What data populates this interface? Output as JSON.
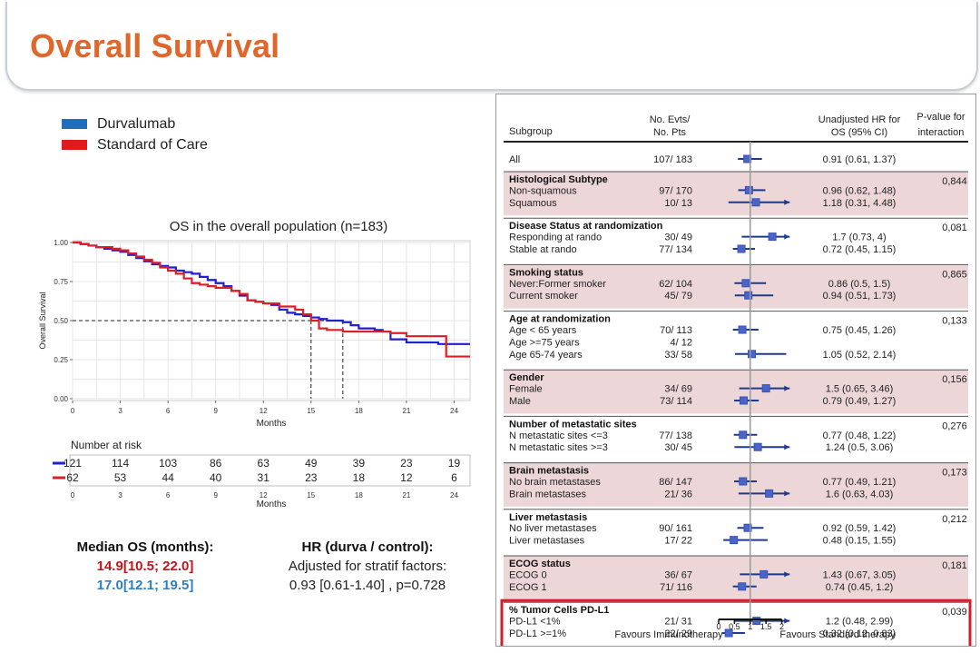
{
  "page": {
    "title": "Overall Survival"
  },
  "km": {
    "legend": [
      {
        "label": "Durvalumab",
        "color": "#1f6fbf"
      },
      {
        "label": "Standard of Care",
        "color": "#e31a1c"
      }
    ],
    "risk_header": "Number at risk",
    "x_label": "Months",
    "y_label": "Overall Survival",
    "colors": {
      "durva": "#1f1fd6",
      "soc": "#dc1f24"
    }
  },
  "median": {
    "title": "Median OS (months):",
    "soc": "14.9[10.5; 22.0]",
    "durva": "17.0[12.1; 19.5]",
    "soc_color": "#c0141b",
    "durva_color": "#2f7fbf"
  },
  "hr": {
    "title": "HR (durva / control):",
    "line1": "Adjusted for stratif factors:",
    "line2": "0.93 [0.61-1.40]   , p=0.728"
  },
  "chart_data": [
    {
      "type": "line",
      "title": "OS in the overall population (n=183)",
      "xlabel": "Months",
      "ylabel": "Overall Survival",
      "xlim": [
        0,
        25
      ],
      "ylim": [
        0,
        1
      ],
      "x_ticks": [
        0,
        3,
        6,
        9,
        12,
        15,
        18,
        21,
        24
      ],
      "y_ticks": [
        "0.00",
        "0.25",
        "0.50",
        "0.75",
        "1.00"
      ],
      "grid": true,
      "series": [
        {
          "name": "Durvalumab",
          "color": "#1f1fd6",
          "points": [
            [
              0,
              1.0
            ],
            [
              0.5,
              0.99
            ],
            [
              1,
              0.98
            ],
            [
              1.5,
              0.97
            ],
            [
              2,
              0.96
            ],
            [
              2.5,
              0.95
            ],
            [
              3,
              0.94
            ],
            [
              3.5,
              0.92
            ],
            [
              4,
              0.9
            ],
            [
              4.5,
              0.88
            ],
            [
              5,
              0.86
            ],
            [
              5.5,
              0.85
            ],
            [
              6,
              0.84
            ],
            [
              6.5,
              0.82
            ],
            [
              7,
              0.81
            ],
            [
              7.5,
              0.8
            ],
            [
              8,
              0.78
            ],
            [
              8.5,
              0.76
            ],
            [
              9,
              0.74
            ],
            [
              9.5,
              0.72
            ],
            [
              10,
              0.69
            ],
            [
              10.5,
              0.66
            ],
            [
              11,
              0.63
            ],
            [
              11.5,
              0.62
            ],
            [
              12,
              0.61
            ],
            [
              12.5,
              0.6
            ],
            [
              13,
              0.57
            ],
            [
              13.5,
              0.55
            ],
            [
              14,
              0.54
            ],
            [
              14.5,
              0.53
            ],
            [
              15,
              0.52
            ],
            [
              15.5,
              0.51
            ],
            [
              16,
              0.5
            ],
            [
              17,
              0.49
            ],
            [
              17.5,
              0.47
            ],
            [
              18,
              0.45
            ],
            [
              19,
              0.44
            ],
            [
              19.5,
              0.43
            ],
            [
              20,
              0.38
            ],
            [
              21,
              0.36
            ],
            [
              22,
              0.36
            ],
            [
              23,
              0.35
            ],
            [
              24,
              0.35
            ],
            [
              25,
              0.35
            ]
          ]
        },
        {
          "name": "Standard of Care",
          "color": "#dc1f24",
          "points": [
            [
              0,
              1.0
            ],
            [
              0.5,
              0.99
            ],
            [
              1,
              0.98
            ],
            [
              1.5,
              0.97
            ],
            [
              2,
              0.97
            ],
            [
              2.5,
              0.96
            ],
            [
              3,
              0.95
            ],
            [
              3.5,
              0.93
            ],
            [
              4,
              0.91
            ],
            [
              4.5,
              0.89
            ],
            [
              5,
              0.87
            ],
            [
              5.5,
              0.84
            ],
            [
              6,
              0.82
            ],
            [
              6.5,
              0.8
            ],
            [
              7,
              0.77
            ],
            [
              7.5,
              0.74
            ],
            [
              8,
              0.73
            ],
            [
              8.5,
              0.72
            ],
            [
              9,
              0.71
            ],
            [
              10,
              0.69
            ],
            [
              10.5,
              0.67
            ],
            [
              11,
              0.63
            ],
            [
              11.5,
              0.62
            ],
            [
              12,
              0.61
            ],
            [
              13,
              0.59
            ],
            [
              14,
              0.57
            ],
            [
              14.5,
              0.54
            ],
            [
              15,
              0.5
            ],
            [
              15.5,
              0.45
            ],
            [
              16,
              0.44
            ],
            [
              17,
              0.43
            ],
            [
              17.5,
              0.43
            ],
            [
              18,
              0.43
            ],
            [
              19,
              0.43
            ],
            [
              20,
              0.42
            ],
            [
              21,
              0.4
            ],
            [
              22,
              0.4
            ],
            [
              23,
              0.4
            ],
            [
              23.5,
              0.27
            ],
            [
              24,
              0.27
            ],
            [
              25,
              0.27
            ]
          ]
        }
      ],
      "median_lines": [
        15,
        17
      ],
      "risk_table": {
        "times": [
          0,
          3,
          6,
          9,
          12,
          15,
          18,
          21,
          24
        ],
        "Durvalumab": [
          121,
          114,
          103,
          86,
          63,
          49,
          39,
          23,
          19
        ],
        "Standard of Care": [
          62,
          53,
          44,
          40,
          31,
          23,
          18,
          12,
          6
        ]
      }
    },
    {
      "type": "forest",
      "headers": {
        "subgroup": "Subgroup",
        "evts_line1": "No. Evts/",
        "evts_line2": "No. Pts",
        "hr_line1": "Unadjusted HR for",
        "hr_line2": "OS (95% CI)",
        "p_line1": "P-value for",
        "p_line2": "interaction"
      },
      "x_ticks": [
        "0",
        "0.5",
        "1",
        "1.5",
        "2"
      ],
      "favours_left": "Favours Immunotherapy",
      "favours_right": "Favours Standard therapy",
      "groups": [
        {
          "title": "",
          "p": "",
          "shaded": false,
          "rows": [
            {
              "label": "All",
              "n": "107/ 183",
              "hr": "0.91 (0.61, 1.37)",
              "est": 0.91,
              "lo": 0.61,
              "hi": 1.37
            }
          ]
        },
        {
          "title": "Histological Subtype",
          "p": "0,844",
          "shaded": true,
          "rows": [
            {
              "label": "Non-squamous",
              "n": "97/ 170",
              "hr": "0.96 (0.62, 1.48)",
              "est": 0.96,
              "lo": 0.62,
              "hi": 1.48
            },
            {
              "label": "Squamous",
              "n": "10/ 13",
              "hr": "1.18 (0.31, 4.48)",
              "est": 1.18,
              "lo": 0.31,
              "hi": 4.48
            }
          ]
        },
        {
          "title": "Disease Status at randomization",
          "p": "0,081",
          "shaded": false,
          "rows": [
            {
              "label": "Responding at rando",
              "n": "30/ 49",
              "hr": "1.7 (0.73, 4)",
              "est": 1.7,
              "lo": 0.73,
              "hi": 4
            },
            {
              "label": "Stable at rando",
              "n": "77/ 134",
              "hr": "0.72 (0.45, 1.15)",
              "est": 0.72,
              "lo": 0.45,
              "hi": 1.15
            }
          ]
        },
        {
          "title": "Smoking status",
          "p": "0,865",
          "shaded": true,
          "rows": [
            {
              "label": "Never:Former smoker",
              "n": "62/ 104",
              "hr": "0.86 (0.5, 1.5)",
              "est": 0.86,
              "lo": 0.5,
              "hi": 1.5
            },
            {
              "label": "Current smoker",
              "n": "45/ 79",
              "hr": "0.94 (0.51, 1.73)",
              "est": 0.94,
              "lo": 0.51,
              "hi": 1.73
            }
          ]
        },
        {
          "title": "Age at randomization",
          "p": "0,133",
          "shaded": false,
          "rows": [
            {
              "label": "Age < 65 years",
              "n": "70/ 113",
              "hr": "0.75 (0.45, 1.26)",
              "est": 0.75,
              "lo": 0.45,
              "hi": 1.26
            },
            {
              "label": "Age >=75 years",
              "n": "4/ 12",
              "hr": "",
              "est": null,
              "lo": null,
              "hi": null
            },
            {
              "label": "Age 65-74 years",
              "n": "33/ 58",
              "hr": "1.05 (0.52, 2.14)",
              "est": 1.05,
              "lo": 0.52,
              "hi": 2.14
            }
          ]
        },
        {
          "title": "Gender",
          "p": "0,156",
          "shaded": true,
          "rows": [
            {
              "label": "Female",
              "n": "34/ 69",
              "hr": "1.5 (0.65, 3.46)",
              "est": 1.5,
              "lo": 0.65,
              "hi": 3.46
            },
            {
              "label": "Male",
              "n": "73/ 114",
              "hr": "0.79 (0.49, 1.27)",
              "est": 0.79,
              "lo": 0.49,
              "hi": 1.27
            }
          ]
        },
        {
          "title": "Number of metastatic sites",
          "p": "0,276",
          "shaded": false,
          "rows": [
            {
              "label": "N metastatic sites <=3",
              "n": "77/ 138",
              "hr": "0.77 (0.48, 1.22)",
              "est": 0.77,
              "lo": 0.48,
              "hi": 1.22
            },
            {
              "label": "N metastatic sites >=3",
              "n": "30/ 45",
              "hr": "1.24 (0.5, 3.06)",
              "est": 1.24,
              "lo": 0.5,
              "hi": 3.06
            }
          ]
        },
        {
          "title": "Brain metastasis",
          "p": "0,173",
          "shaded": true,
          "rows": [
            {
              "label": "No brain metastases",
              "n": "86/ 147",
              "hr": "0.77 (0.49, 1.21)",
              "est": 0.77,
              "lo": 0.49,
              "hi": 1.21
            },
            {
              "label": "Brain metastases",
              "n": "21/ 36",
              "hr": "1.6 (0.63, 4.03)",
              "est": 1.6,
              "lo": 0.63,
              "hi": 4.03
            }
          ]
        },
        {
          "title": "Liver metastasis",
          "p": "0,212",
          "shaded": false,
          "rows": [
            {
              "label": "No liver metastases",
              "n": "90/ 161",
              "hr": "0.92 (0.59, 1.42)",
              "est": 0.92,
              "lo": 0.59,
              "hi": 1.42
            },
            {
              "label": "Liver metastases",
              "n": "17/ 22",
              "hr": "0.48 (0.15, 1.55)",
              "est": 0.48,
              "lo": 0.15,
              "hi": 1.55
            }
          ]
        },
        {
          "title": "ECOG status",
          "p": "0,181",
          "shaded": true,
          "rows": [
            {
              "label": "ECOG 0",
              "n": "36/ 67",
              "hr": "1.43 (0.67, 3.05)",
              "est": 1.43,
              "lo": 0.67,
              "hi": 3.05
            },
            {
              "label": "ECOG 1",
              "n": "71/ 116",
              "hr": "0.74 (0.45, 1.2)",
              "est": 0.74,
              "lo": 0.45,
              "hi": 1.2
            }
          ]
        },
        {
          "title": "% Tumor Cells PD-L1",
          "p": "0,039",
          "shaded": false,
          "highlight": true,
          "rows": [
            {
              "label": "PD-L1 <1%",
              "n": "21/ 31",
              "hr": "1.2 (0.48, 2.99)",
              "est": 1.2,
              "lo": 0.48,
              "hi": 2.99
            },
            {
              "label": "PD-L1 >=1%",
              "n": "22/ 29",
              "hr": "0.32 (0.12, 0.83)",
              "est": 0.32,
              "lo": 0.12,
              "hi": 0.83
            }
          ]
        }
      ]
    }
  ]
}
